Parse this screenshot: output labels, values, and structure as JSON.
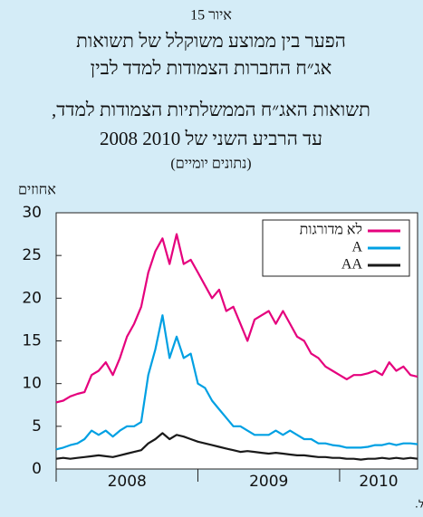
{
  "chart_data": {
    "type": "line",
    "figure_label": "איור 15",
    "title": [
      "הפער בין ממוצע משוקלל של תשואות",
      "אג״ח החברות הצמודות למדד לבין",
      "תשואות האג״ח הממשלתיות הצמודות  למדד,",
      "2008 עד הרביע השני של 2010"
    ],
    "subtitle": "(נתונים יומיים)",
    "y_label": "אחוזים",
    "source": "המקור: הבורסה לניירות ערך ועיבודי בנק ישראל.",
    "x": [
      2008,
      2008.05,
      2008.1,
      2008.15,
      2008.2,
      2008.25,
      2008.3,
      2008.35,
      2008.4,
      2008.45,
      2008.5,
      2008.55,
      2008.6,
      2008.65,
      2008.7,
      2008.75,
      2008.8,
      2008.85,
      2008.9,
      2008.95,
      2009,
      2009.05,
      2009.1,
      2009.15,
      2009.2,
      2009.25,
      2009.3,
      2009.35,
      2009.4,
      2009.45,
      2009.5,
      2009.55,
      2009.6,
      2009.65,
      2009.7,
      2009.75,
      2009.8,
      2009.85,
      2009.9,
      2009.95,
      2010,
      2010.05,
      2010.1,
      2010.15,
      2010.2,
      2010.25,
      2010.3,
      2010.35,
      2010.4,
      2010.45,
      2010.5,
      2010.55
    ],
    "xlim": [
      2008,
      2010.55
    ],
    "xticks": [
      2008,
      2009,
      2010
    ],
    "ylim": [
      0,
      30
    ],
    "yticks": [
      0,
      5,
      10,
      15,
      20,
      25,
      30
    ],
    "legend": "top-right",
    "series": [
      {
        "name": "לא מדורגות",
        "color": "#e5007d",
        "values": [
          7.8,
          8,
          8.5,
          8.8,
          9,
          11,
          11.5,
          12.5,
          11,
          13,
          15.5,
          17,
          19,
          23,
          25.5,
          27,
          24,
          27.5,
          24,
          24.5,
          23,
          21.5,
          20,
          21,
          18.5,
          19,
          17,
          15,
          17.5,
          18,
          18.5,
          17,
          18.5,
          17,
          15.5,
          15,
          13.5,
          13,
          12,
          11.5,
          11,
          10.5,
          11,
          11,
          11.2,
          11.5,
          11,
          12.5,
          11.5,
          12,
          11,
          10.8
        ]
      },
      {
        "name": "A",
        "color": "#00a0e3",
        "values": [
          2.3,
          2.5,
          2.8,
          3,
          3.5,
          4.5,
          4,
          4.5,
          3.8,
          4.5,
          5,
          5,
          5.5,
          11,
          14,
          18,
          13,
          15.5,
          13,
          13.5,
          10,
          9.5,
          8,
          7,
          6,
          5,
          5,
          4.5,
          4,
          4,
          4,
          4.5,
          4,
          4.5,
          4,
          3.5,
          3.5,
          3,
          3,
          2.8,
          2.7,
          2.5,
          2.5,
          2.5,
          2.6,
          2.8,
          2.8,
          3,
          2.8,
          3,
          3,
          2.9
        ]
      },
      {
        "name": "AA",
        "color": "#1a1a1a",
        "values": [
          1.2,
          1.3,
          1.2,
          1.3,
          1.4,
          1.5,
          1.6,
          1.5,
          1.4,
          1.6,
          1.8,
          2,
          2.2,
          3,
          3.5,
          4.2,
          3.5,
          4,
          3.8,
          3.5,
          3.2,
          3,
          2.8,
          2.6,
          2.4,
          2.2,
          2,
          2.1,
          2,
          1.9,
          1.8,
          1.9,
          1.8,
          1.7,
          1.6,
          1.6,
          1.5,
          1.4,
          1.4,
          1.3,
          1.3,
          1.2,
          1.2,
          1.1,
          1.2,
          1.2,
          1.3,
          1.2,
          1.3,
          1.2,
          1.3,
          1.2
        ]
      }
    ]
  }
}
